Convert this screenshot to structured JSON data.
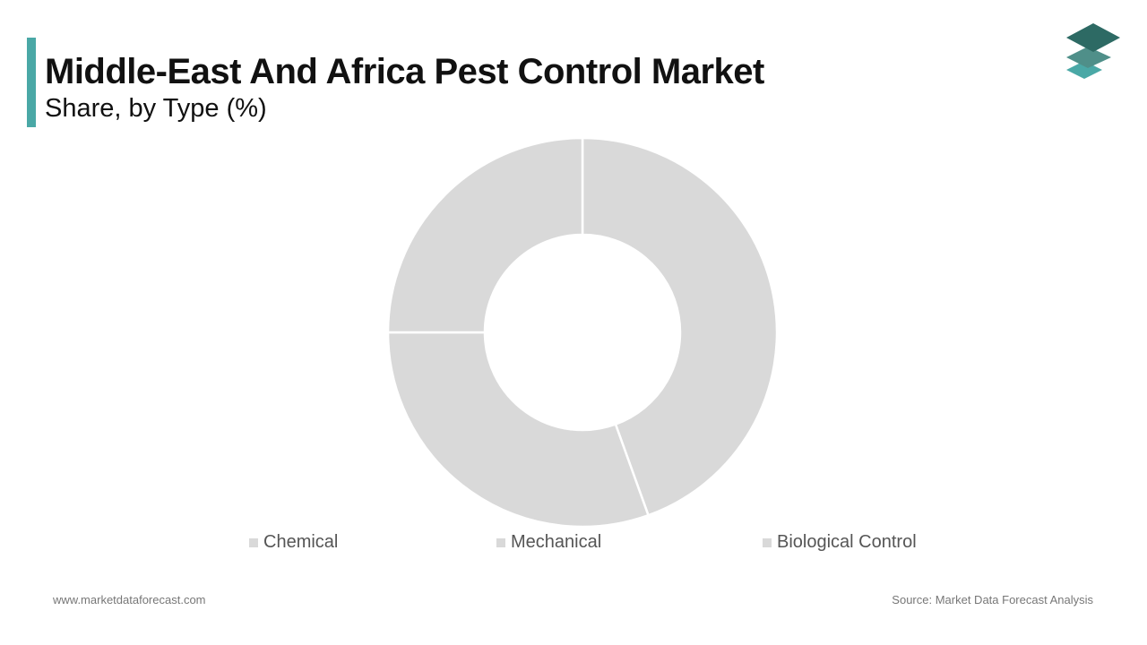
{
  "header": {
    "title": "Middle-East And Africa Pest Control Market",
    "subtitle": "Share, by Type (%)",
    "accent_color": "#4aa8a6"
  },
  "logo": {
    "icon": "stacked-layers-logo-icon",
    "colors": [
      "#2d6a64",
      "#4f8f89",
      "#4aa8a6"
    ]
  },
  "chart_data": {
    "type": "pie",
    "variant": "donut",
    "categories": [
      "Chemical",
      "Mechanical",
      "Biological Control"
    ],
    "values": [
      44.5,
      30.5,
      25.0
    ],
    "slice_colors": [
      "#d9d9d9",
      "#d9d9d9",
      "#d9d9d9"
    ],
    "legend_position": "bottom",
    "title": "Middle-East And Africa Pest Control Market",
    "subtitle": "Share, by Type (%)"
  },
  "footer": {
    "website": "www.marketdataforecast.com",
    "source": "Source: Market Data Forecast Analysis"
  }
}
